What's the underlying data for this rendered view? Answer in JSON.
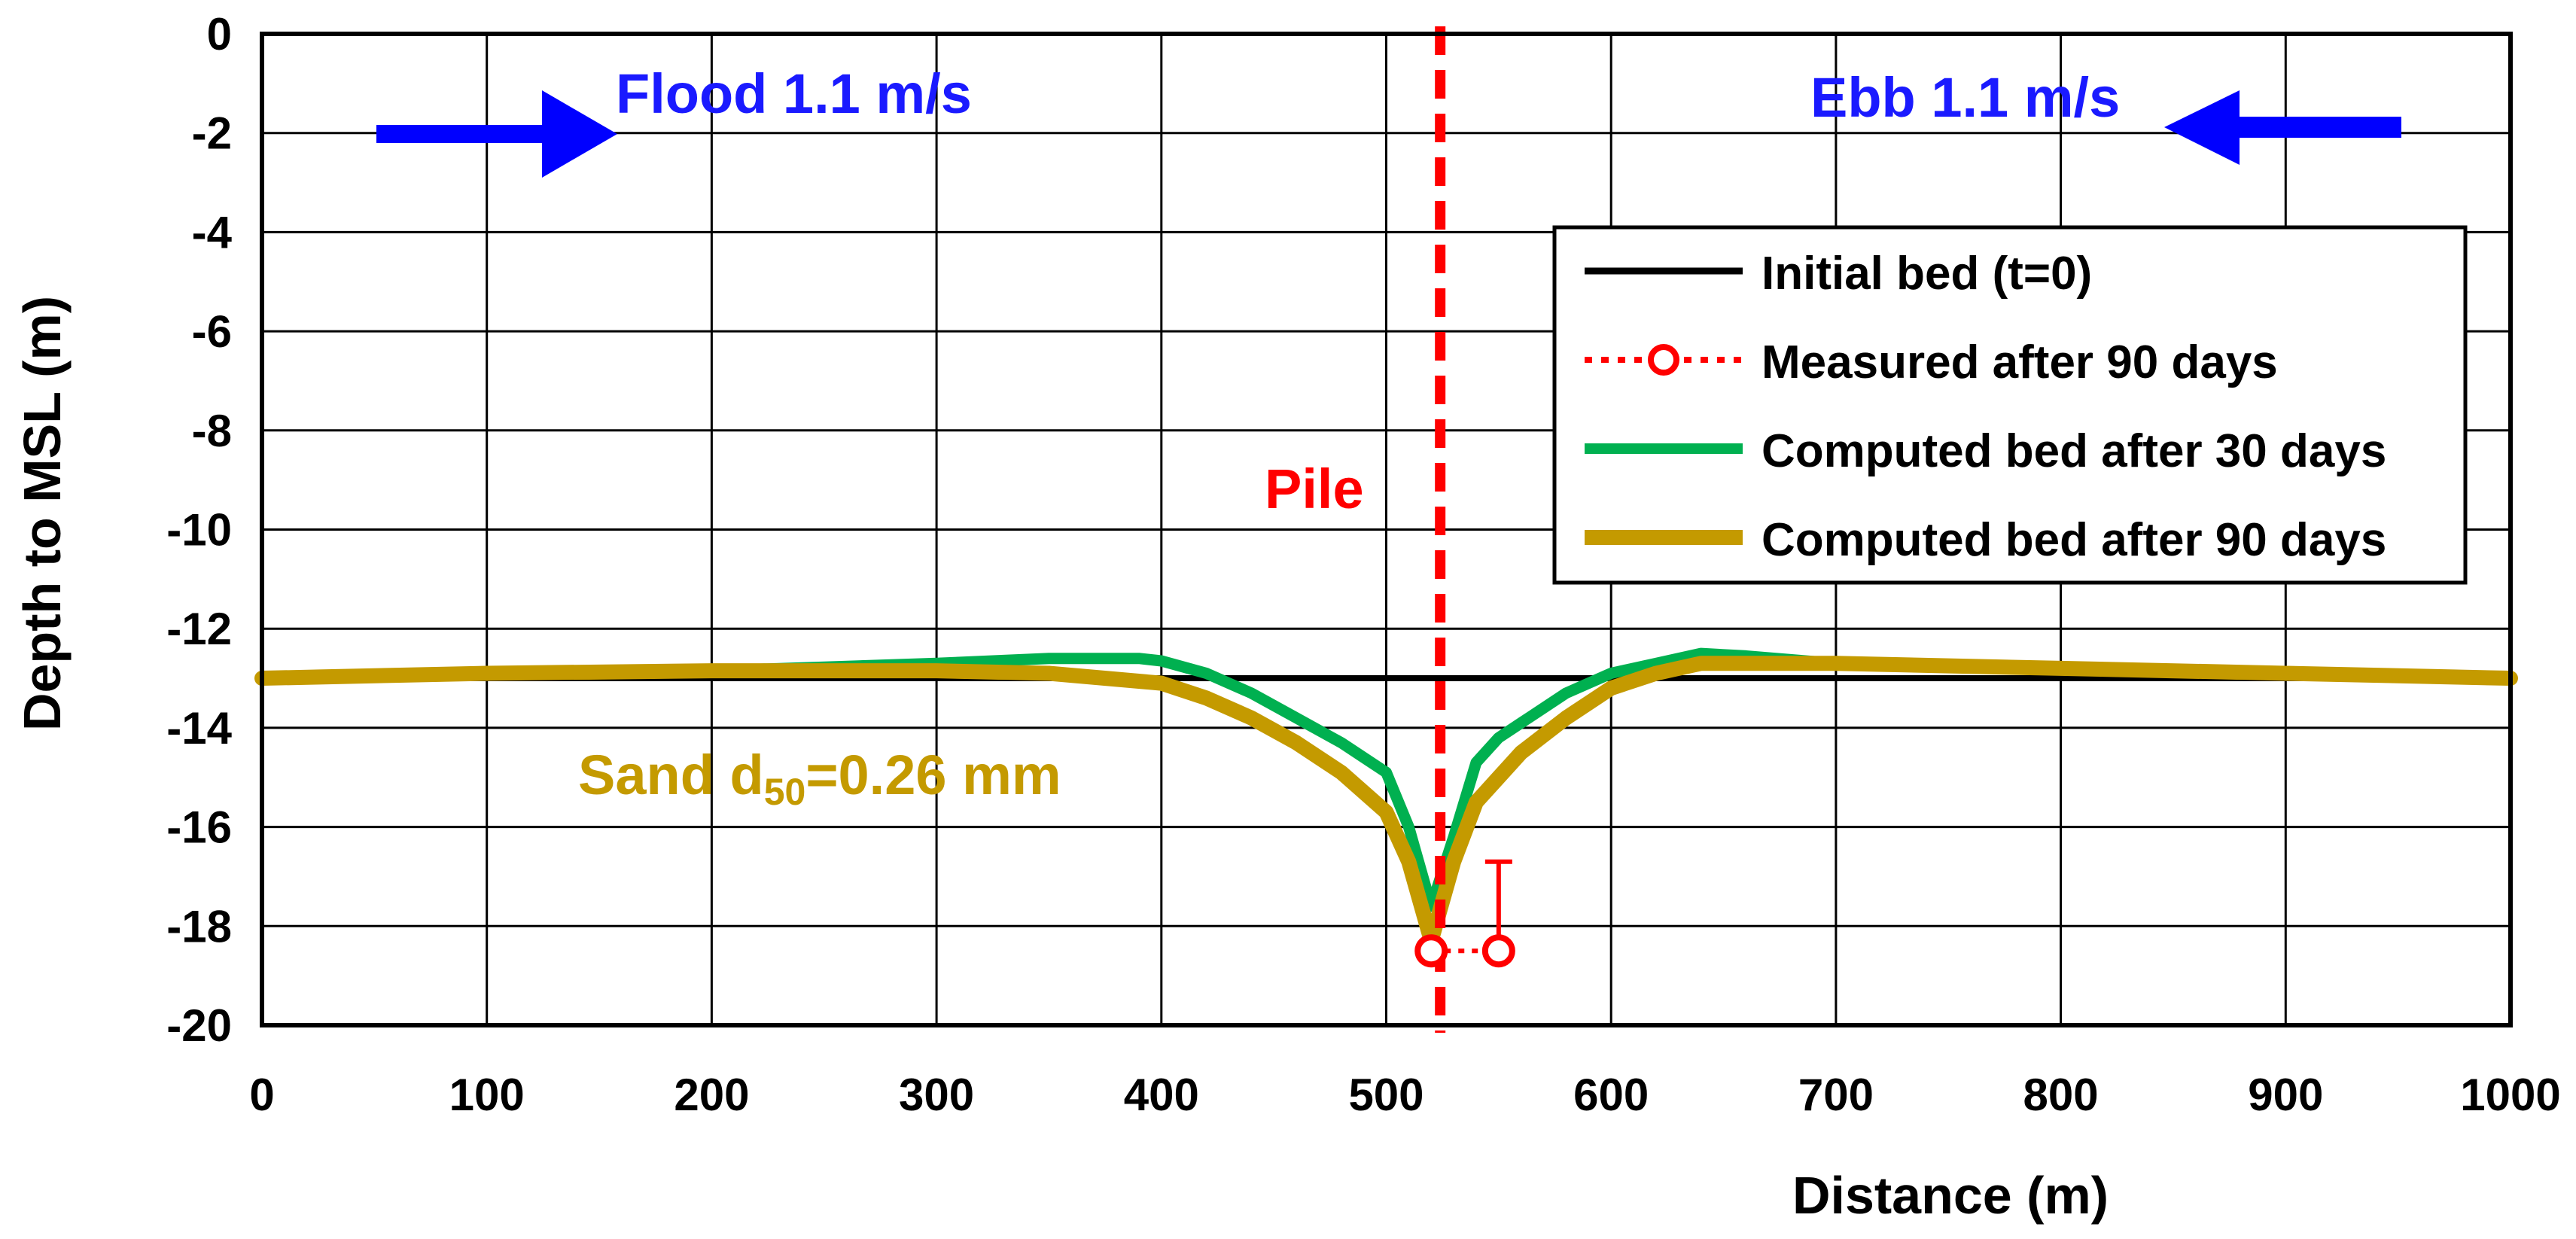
{
  "chart_data": {
    "type": "line",
    "title": "",
    "xlabel": "Distance (m)",
    "ylabel": "Depth to MSL (m)",
    "xlim": [
      0,
      1000
    ],
    "ylim": [
      -20,
      0
    ],
    "x_ticks": [
      0,
      100,
      200,
      300,
      400,
      500,
      600,
      700,
      800,
      900,
      1000
    ],
    "y_ticks": [
      0,
      -2,
      -4,
      -6,
      -8,
      -10,
      -12,
      -14,
      -16,
      -18,
      -20
    ],
    "x_tick_labels": [
      "0",
      "100",
      "200",
      "300",
      "400",
      "500",
      "600",
      "700",
      "800",
      "900",
      "1000"
    ],
    "y_tick_labels": [
      "0",
      "-2",
      "-4",
      "-6",
      "-8",
      "-10",
      "-12",
      "-14",
      "-16",
      "-18",
      "-20"
    ],
    "grid": true,
    "legend_position": "top-right",
    "series": [
      {
        "name": "Initial bed (t=0)",
        "color": "#000000",
        "style": "solid",
        "x": [
          0,
          1000
        ],
        "y": [
          -13,
          -13
        ]
      },
      {
        "name": "Measured after 90 days",
        "color": "#ff0000",
        "style": "dotted-circle",
        "x": [
          520,
          550
        ],
        "y": [
          -18.5,
          -18.5
        ],
        "error_bar": {
          "x": 550,
          "y_low": -18.5,
          "y_high": -16.7
        }
      },
      {
        "name": "Computed bed after 30 days",
        "color": "#00b050",
        "style": "solid",
        "x": [
          0,
          100,
          200,
          300,
          350,
          390,
          400,
          420,
          440,
          460,
          480,
          500,
          510,
          520,
          530,
          540,
          550,
          560,
          580,
          600,
          620,
          640,
          660,
          700,
          800,
          900,
          1000
        ],
        "y": [
          -13.0,
          -12.9,
          -12.85,
          -12.7,
          -12.6,
          -12.6,
          -12.65,
          -12.9,
          -13.3,
          -13.8,
          -14.3,
          -14.9,
          -16.0,
          -17.6,
          -16.2,
          -14.7,
          -14.2,
          -13.9,
          -13.3,
          -12.9,
          -12.7,
          -12.5,
          -12.55,
          -12.7,
          -12.8,
          -12.9,
          -13.0
        ]
      },
      {
        "name": "Computed bed after 90 days",
        "color": "#c49a00",
        "style": "solid",
        "x": [
          0,
          100,
          200,
          300,
          350,
          400,
          420,
          440,
          460,
          480,
          500,
          510,
          520,
          530,
          540,
          550,
          560,
          580,
          600,
          620,
          640,
          660,
          700,
          800,
          900,
          1000
        ],
        "y": [
          -13.0,
          -12.9,
          -12.85,
          -12.85,
          -12.9,
          -13.1,
          -13.4,
          -13.8,
          -14.3,
          -14.9,
          -15.7,
          -16.7,
          -18.3,
          -16.7,
          -15.5,
          -15.0,
          -14.5,
          -13.8,
          -13.2,
          -12.9,
          -12.7,
          -12.7,
          -12.7,
          -12.8,
          -12.9,
          -13.0
        ]
      }
    ],
    "annotations": {
      "flood": "Flood 1.1 m/s",
      "ebb": "Ebb 1.1 m/s",
      "pile": "Pile",
      "pile_x": 524,
      "sand_prefix": "Sand d",
      "sand_sub": "50",
      "sand_suffix": "=0.26 mm"
    },
    "colors": {
      "arrow": "#0000ff",
      "annotation_text": "#1a1aff",
      "pile": "#ff0000",
      "sand_text": "#c49a00",
      "grid": "#000000"
    }
  }
}
